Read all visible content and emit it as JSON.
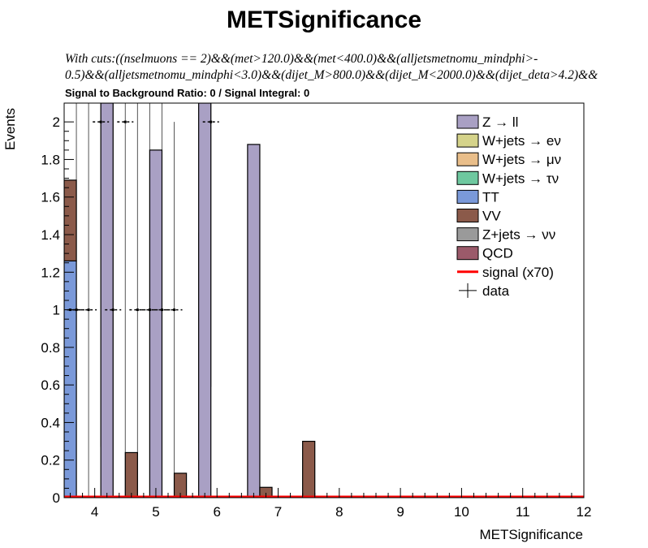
{
  "title": "METSignificance",
  "cuts_line1": "With cuts:((nselmuons == 2)&&(met>120.0)&&(met<400.0)&&(alljetsmetnomu_mindphi>-",
  "cuts_line2": "0.5)&&(alljetsmetnomu_mindphi<3.0)&&(dijet_M>800.0)&&(dijet_M<2000.0)&&(dijet_deta>4.2)&&",
  "ratio_text": "Signal to Background Ratio: 0 / Signal Integral: 0",
  "chart_data": {
    "type": "bar",
    "title": "METSignificance",
    "xlabel": "METSignificance",
    "ylabel": "Events",
    "xlim": [
      3.5,
      12
    ],
    "ylim": [
      0,
      2.1
    ],
    "xticks": [
      "4",
      "5",
      "6",
      "7",
      "8",
      "9",
      "10",
      "11",
      "12"
    ],
    "yticks": [
      "0",
      "0.2",
      "0.4",
      "0.6",
      "0.8",
      "1",
      "1.2",
      "1.4",
      "1.6",
      "1.8",
      "2"
    ],
    "legend_position": "top-right",
    "bin_width": 0.2,
    "series": [
      {
        "name": "Z → ll",
        "color": "#a9a0c4",
        "bars": [
          {
            "x": 4.1,
            "y": 2.1
          },
          {
            "x": 4.9,
            "y": 1.85
          },
          {
            "x": 5.7,
            "y": 2.1
          },
          {
            "x": 6.5,
            "y": 1.88
          }
        ]
      },
      {
        "name": "W+jets → eν",
        "color": "#d5d38a",
        "bars": []
      },
      {
        "name": "W+jets → μν",
        "color": "#e9be8a",
        "bars": []
      },
      {
        "name": "W+jets → τν",
        "color": "#6ec89f",
        "bars": []
      },
      {
        "name": "TT",
        "color": "#7a99d9",
        "bars": [
          {
            "x": 3.5,
            "y": 1.26
          }
        ]
      },
      {
        "name": "VV",
        "color": "#8b5a4a",
        "bars": [
          {
            "x": 3.5,
            "y": 1.69,
            "base": 1.26
          },
          {
            "x": 4.5,
            "y": 0.24
          },
          {
            "x": 5.3,
            "y": 0.13
          },
          {
            "x": 6.7,
            "y": 0.055
          },
          {
            "x": 7.0,
            "y": 0.004
          },
          {
            "x": 7.4,
            "y": 0.3
          }
        ]
      },
      {
        "name": "Z+jets → νν",
        "color": "#9a9a9a",
        "bars": []
      },
      {
        "name": "QCD",
        "color": "#9b5a6a",
        "bars": []
      },
      {
        "name": "signal (x70)",
        "color": "#ff0000",
        "style": "line",
        "values": [
          0
        ]
      },
      {
        "name": "data",
        "color": "#000000",
        "style": "points",
        "points": [
          {
            "x": 3.6,
            "y": 1
          },
          {
            "x": 3.7,
            "y": 1
          },
          {
            "x": 3.9,
            "y": 1
          },
          {
            "x": 4.1,
            "y": 2
          },
          {
            "x": 4.3,
            "y": 1
          },
          {
            "x": 4.5,
            "y": 2
          },
          {
            "x": 4.7,
            "y": 1
          },
          {
            "x": 4.9,
            "y": 1
          },
          {
            "x": 5.1,
            "y": 1
          },
          {
            "x": 5.3,
            "y": 1
          },
          {
            "x": 5.9,
            "y": 2
          }
        ]
      }
    ],
    "error_bars": [
      {
        "x": 3.7,
        "lo": 0,
        "hi": 2.1
      },
      {
        "x": 3.9,
        "lo": 0,
        "hi": 2.1
      },
      {
        "x": 4.1,
        "lo": 0.27,
        "hi": 2.1
      },
      {
        "x": 4.3,
        "lo": 0,
        "hi": 2.1
      },
      {
        "x": 4.5,
        "lo": 0,
        "hi": 2.1
      },
      {
        "x": 4.7,
        "lo": 0,
        "hi": 2.1
      },
      {
        "x": 4.9,
        "lo": 0,
        "hi": 2.1
      },
      {
        "x": 5.1,
        "lo": 0,
        "hi": 2.1
      },
      {
        "x": 5.3,
        "lo": 0,
        "hi": 2.0
      },
      {
        "x": 5.9,
        "lo": 0.59,
        "hi": 2.1
      },
      {
        "x": 5.7,
        "lo": 0.29,
        "hi": 1.41
      }
    ]
  }
}
